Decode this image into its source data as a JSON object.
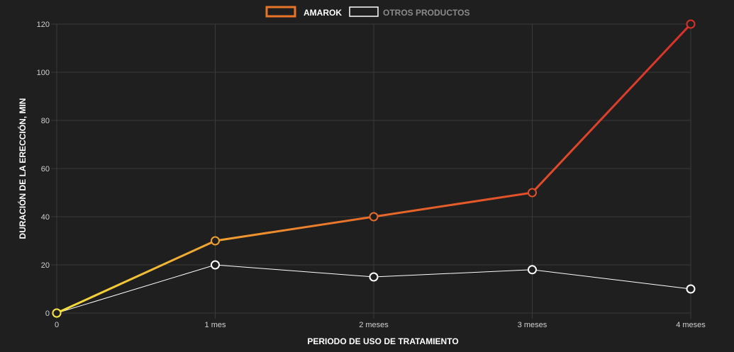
{
  "chart_data": {
    "type": "line",
    "title": "",
    "xlabel": "PERIODO DE USO DE TRATAMIENTO",
    "ylabel": "DURACIÓN DE LA ERECCIÓN, MIN",
    "categories": [
      "0",
      "1 mes",
      "2 meses",
      "3 meses",
      "4 meses"
    ],
    "ylim": [
      0,
      120
    ],
    "yticks": [
      0,
      20,
      40,
      60,
      80,
      100,
      120
    ],
    "grid": true,
    "legend_position": "top-center",
    "series": [
      {
        "name": "AMAROK",
        "values": [
          0,
          30,
          40,
          50,
          120
        ],
        "legend_color": "#e8742a",
        "gradient_colors": [
          "#f5e13a",
          "#f0a030",
          "#e86a2a",
          "#d9302a"
        ]
      },
      {
        "name": "OTROS PRODUCTOS",
        "values": [
          0,
          20,
          15,
          18,
          10
        ],
        "legend_color": "#ffffff"
      }
    ]
  },
  "colors": {
    "background": "#1f1f1f",
    "grid": "#3a3a3a",
    "inactive_legend_text": "#8a8a8a",
    "active_legend_text": "#ffffff"
  }
}
